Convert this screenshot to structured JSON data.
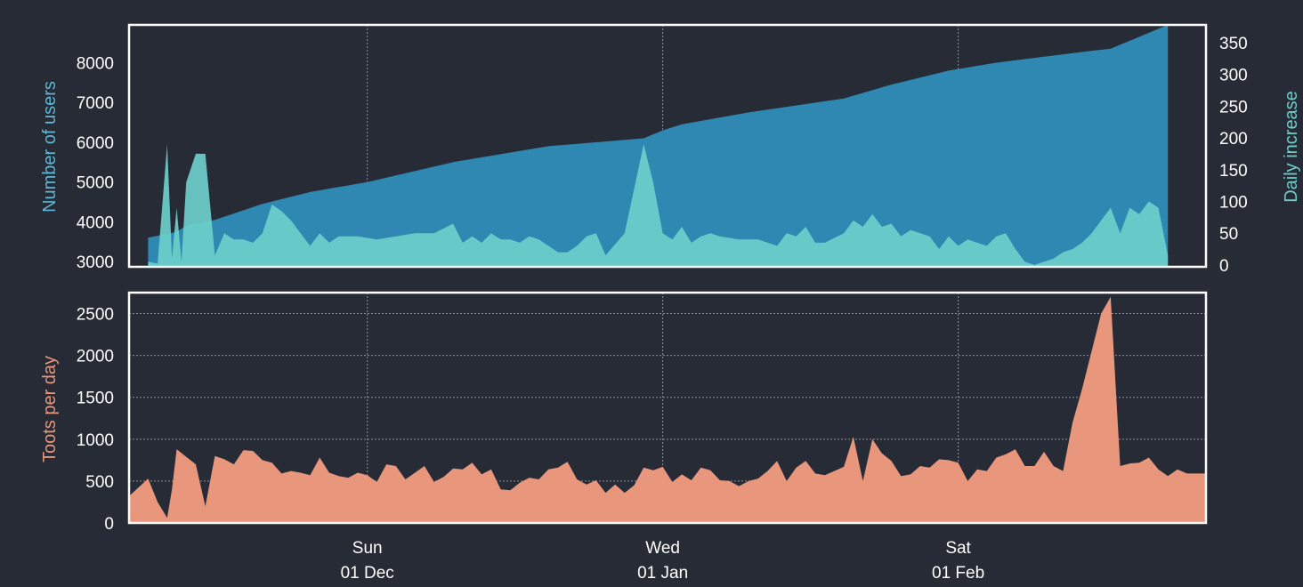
{
  "colors": {
    "background": "#272b35",
    "users": "#2f88b1",
    "increase": "#6ccfcb",
    "toots": "#e8967c",
    "users_label": "#5bb8d8",
    "increase_label": "#6ccfcb",
    "toots_label": "#e8967c"
  },
  "chart_data": [
    {
      "type": "area",
      "ylabel": "Number of users",
      "y2label": "Daily increase",
      "ylim": [
        2870,
        8950
      ],
      "y2lim": [
        -3,
        378
      ],
      "y_ticks": [
        "3000",
        "4000",
        "5000",
        "6000",
        "7000",
        "8000"
      ],
      "y2_ticks": [
        "0",
        "50",
        "100",
        "150",
        "200",
        "250",
        "300",
        "350"
      ],
      "grid": true,
      "series": [
        {
          "name": "Number of users",
          "axis": "left",
          "x": [
            "2019-11-08",
            "2019-11-11",
            "2019-11-12",
            "2019-11-15",
            "2019-11-20",
            "2019-11-25",
            "2019-12-01",
            "2019-12-10",
            "2019-12-20",
            "2019-12-30",
            "2020-01-01",
            "2020-01-03",
            "2020-01-10",
            "2020-01-20",
            "2020-01-25",
            "2020-01-31",
            "2020-02-05",
            "2020-02-10",
            "2020-02-15",
            "2020-02-17",
            "2020-02-20",
            "2020-02-23"
          ],
          "values": [
            3600,
            3750,
            3900,
            4050,
            4450,
            4750,
            5000,
            5500,
            5900,
            6100,
            6300,
            6450,
            6750,
            7100,
            7450,
            7800,
            8000,
            8150,
            8300,
            8350,
            8650,
            8950
          ]
        },
        {
          "name": "Daily increase",
          "axis": "right",
          "x": [
            "2019-11-08",
            "2019-11-09",
            "2019-11-10",
            "2019-11-10.5",
            "2019-11-11",
            "2019-11-11.5",
            "2019-11-12",
            "2019-11-13",
            "2019-11-14",
            "2019-11-15",
            "2019-11-16",
            "2019-11-17",
            "2019-11-18",
            "2019-11-19",
            "2019-11-20",
            "2019-11-21",
            "2019-11-22",
            "2019-11-23",
            "2019-11-24",
            "2019-11-25",
            "2019-11-26",
            "2019-11-27",
            "2019-11-28",
            "2019-11-30",
            "2019-12-02",
            "2019-12-04",
            "2019-12-06",
            "2019-12-08",
            "2019-12-10",
            "2019-12-11",
            "2019-12-12",
            "2019-12-13",
            "2019-12-14",
            "2019-12-15",
            "2019-12-16",
            "2019-12-17",
            "2019-12-18",
            "2019-12-19",
            "2019-12-20",
            "2019-12-21",
            "2019-12-22",
            "2019-12-23",
            "2019-12-24",
            "2019-12-25",
            "2019-12-26",
            "2019-12-28",
            "2019-12-30",
            "2019-12-31",
            "2020-01-01",
            "2020-01-02",
            "2020-01-03",
            "2020-01-04",
            "2020-01-05",
            "2020-01-06",
            "2020-01-07",
            "2020-01-09",
            "2020-01-11",
            "2020-01-13",
            "2020-01-14",
            "2020-01-15",
            "2020-01-16",
            "2020-01-17",
            "2020-01-18",
            "2020-01-20",
            "2020-01-21",
            "2020-01-22",
            "2020-01-23",
            "2020-01-24",
            "2020-01-25",
            "2020-01-26",
            "2020-01-27",
            "2020-01-28",
            "2020-01-29",
            "2020-01-30",
            "2020-01-31",
            "2020-02-01",
            "2020-02-02",
            "2020-02-03",
            "2020-02-04",
            "2020-02-05",
            "2020-02-06",
            "2020-02-07",
            "2020-02-08",
            "2020-02-09",
            "2020-02-10",
            "2020-02-11",
            "2020-02-12",
            "2020-02-13",
            "2020-02-14",
            "2020-02-15",
            "2020-02-16",
            "2020-02-17",
            "2020-02-18",
            "2020-02-19",
            "2020-02-20",
            "2020-02-21",
            "2020-02-22",
            "2020-02-23"
          ],
          "values": [
            5,
            2,
            190,
            10,
            90,
            5,
            130,
            175,
            175,
            15,
            50,
            40,
            40,
            35,
            50,
            95,
            85,
            70,
            50,
            30,
            50,
            35,
            45,
            45,
            40,
            45,
            50,
            50,
            65,
            35,
            45,
            35,
            50,
            40,
            40,
            35,
            45,
            40,
            30,
            20,
            20,
            30,
            45,
            50,
            15,
            50,
            190,
            130,
            50,
            40,
            60,
            35,
            45,
            50,
            45,
            40,
            40,
            30,
            50,
            45,
            60,
            35,
            35,
            50,
            70,
            60,
            80,
            60,
            65,
            45,
            55,
            50,
            45,
            25,
            45,
            30,
            40,
            35,
            30,
            45,
            50,
            25,
            5,
            0,
            5,
            10,
            20,
            25,
            35,
            50,
            70,
            90,
            50,
            90,
            80,
            100,
            90,
            15
          ]
        }
      ]
    },
    {
      "type": "area",
      "ylabel": "Toots per day",
      "ylim": [
        0,
        2750
      ],
      "y_ticks": [
        "0",
        "500",
        "1000",
        "1500",
        "2000",
        "2500"
      ],
      "x_ticks": [
        {
          "date": "2019-12-01",
          "day": "Sun",
          "label": "01 Dec"
        },
        {
          "date": "2020-01-01",
          "day": "Wed",
          "label": "01 Jan"
        },
        {
          "date": "2020-02-01",
          "day": "Sat",
          "label": "01 Feb"
        }
      ],
      "xlim": [
        "2019-11-06",
        "2020-02-27"
      ],
      "grid": true,
      "series": [
        {
          "name": "Toots per day",
          "x": [
            "2019-11-06",
            "2019-11-08",
            "2019-11-09",
            "2019-11-10",
            "2019-11-10.5",
            "2019-11-11",
            "2019-11-13",
            "2019-11-14",
            "2019-11-15",
            "2019-11-16",
            "2019-11-17",
            "2019-11-18",
            "2019-11-19",
            "2019-11-20",
            "2019-11-21",
            "2019-11-22",
            "2019-11-23",
            "2019-11-24",
            "2019-11-25",
            "2019-11-26",
            "2019-11-27",
            "2019-11-28",
            "2019-11-29",
            "2019-11-30",
            "2019-12-01",
            "2019-12-02",
            "2019-12-03",
            "2019-12-04",
            "2019-12-05",
            "2019-12-06",
            "2019-12-07",
            "2019-12-08",
            "2019-12-09",
            "2019-12-10",
            "2019-12-11",
            "2019-12-12",
            "2019-12-13",
            "2019-12-14",
            "2019-12-15",
            "2019-12-16",
            "2019-12-17",
            "2019-12-18",
            "2019-12-19",
            "2019-12-20",
            "2019-12-21",
            "2019-12-22",
            "2019-12-23",
            "2019-12-24",
            "2019-12-25",
            "2019-12-26",
            "2019-12-27",
            "2019-12-28",
            "2019-12-29",
            "2019-12-30",
            "2019-12-31",
            "2020-01-01",
            "2020-01-02",
            "2020-01-03",
            "2020-01-04",
            "2020-01-05",
            "2020-01-06",
            "2020-01-07",
            "2020-01-08",
            "2020-01-09",
            "2020-01-10",
            "2020-01-11",
            "2020-01-12",
            "2020-01-13",
            "2020-01-14",
            "2020-01-15",
            "2020-01-16",
            "2020-01-17",
            "2020-01-18",
            "2020-01-19",
            "2020-01-20",
            "2020-01-21",
            "2020-01-22",
            "2020-01-23",
            "2020-01-24",
            "2020-01-25",
            "2020-01-26",
            "2020-01-27",
            "2020-01-28",
            "2020-01-29",
            "2020-01-30",
            "2020-01-31",
            "2020-02-01",
            "2020-02-02",
            "2020-02-03",
            "2020-02-04",
            "2020-02-05",
            "2020-02-06",
            "2020-02-07",
            "2020-02-08",
            "2020-02-09",
            "2020-02-10",
            "2020-02-11",
            "2020-02-12",
            "2020-02-13",
            "2020-02-14",
            "2020-02-15",
            "2020-02-16",
            "2020-02-17",
            "2020-02-18",
            "2020-02-19",
            "2020-02-20",
            "2020-02-21",
            "2020-02-22",
            "2020-02-23",
            "2020-02-24",
            "2020-02-25",
            "2020-02-26",
            "2020-02-27"
          ],
          "values": [
            320,
            530,
            250,
            60,
            400,
            880,
            700,
            200,
            800,
            760,
            700,
            870,
            860,
            750,
            720,
            590,
            620,
            600,
            570,
            780,
            600,
            560,
            540,
            600,
            570,
            490,
            700,
            680,
            520,
            600,
            680,
            490,
            550,
            650,
            640,
            720,
            580,
            640,
            400,
            390,
            480,
            540,
            520,
            640,
            660,
            730,
            520,
            460,
            510,
            360,
            460,
            360,
            450,
            660,
            630,
            670,
            490,
            580,
            510,
            660,
            630,
            510,
            500,
            440,
            500,
            530,
            620,
            740,
            500,
            660,
            740,
            590,
            570,
            620,
            670,
            1030,
            500,
            1000,
            830,
            740,
            560,
            580,
            680,
            660,
            760,
            750,
            720,
            500,
            640,
            620,
            780,
            820,
            880,
            680,
            680,
            850,
            680,
            620,
            1200,
            1600,
            2050,
            2500,
            2700,
            680,
            710,
            720,
            780,
            640,
            560,
            640,
            590,
            590,
            590
          ]
        }
      ]
    }
  ]
}
